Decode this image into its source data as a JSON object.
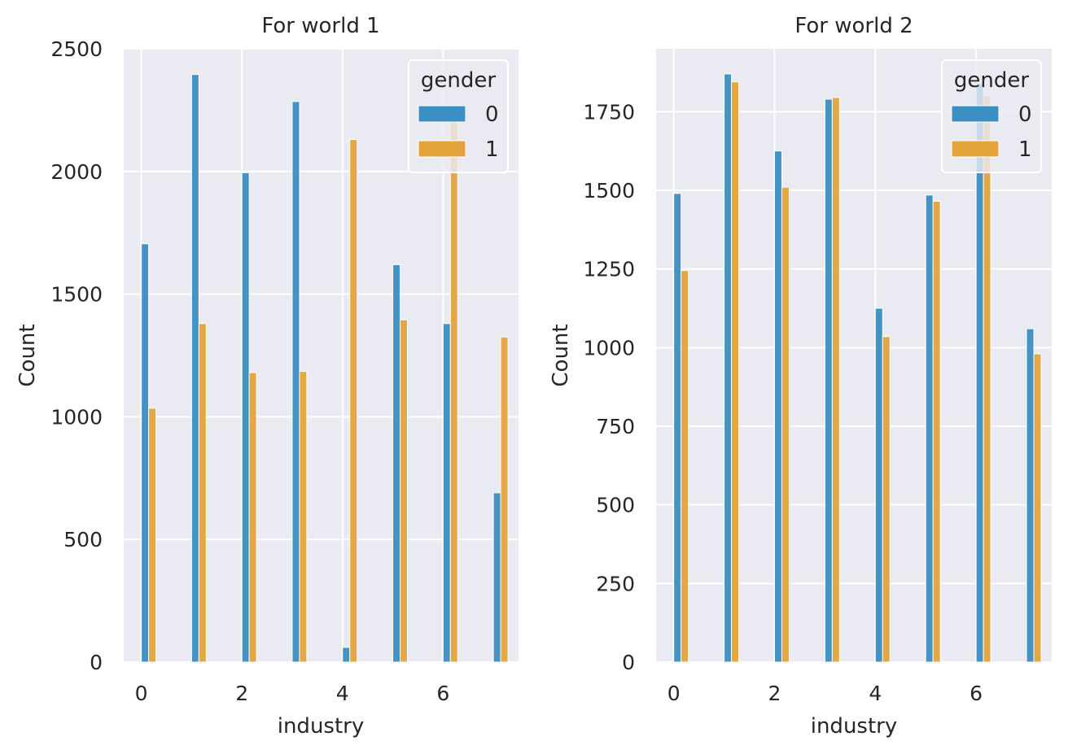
{
  "chart_data": [
    {
      "type": "bar",
      "title": "For world 1",
      "xlabel": "industry",
      "ylabel": "Count",
      "xlim": [
        -0.35,
        7.5
      ],
      "ylim": [
        0,
        2500
      ],
      "xticks": [
        "0",
        "2",
        "4",
        "6"
      ],
      "yticks": [
        "0",
        "500",
        "1000",
        "1500",
        "2000",
        "2500"
      ],
      "grid": true,
      "categories": [
        0,
        1,
        2,
        3,
        4,
        5,
        6,
        7
      ],
      "legend": {
        "title": "gender",
        "placement": "top-right",
        "entries": [
          "0",
          "1"
        ]
      },
      "series": [
        {
          "name": "0",
          "color": "#3c8fc2",
          "values": [
            1705,
            2395,
            1995,
            2285,
            60,
            1620,
            1380,
            690
          ]
        },
        {
          "name": "1",
          "color": "#e4a43c",
          "values": [
            1035,
            1380,
            1180,
            1185,
            2130,
            1395,
            2235,
            1325
          ]
        }
      ]
    },
    {
      "type": "bar",
      "title": "For world 2",
      "xlabel": "industry",
      "ylabel": "Count",
      "xlim": [
        -0.35,
        7.5
      ],
      "ylim": [
        0,
        1950
      ],
      "xticks": [
        "0",
        "2",
        "4",
        "6"
      ],
      "yticks": [
        "0",
        "250",
        "500",
        "750",
        "1000",
        "1250",
        "1500",
        "1750"
      ],
      "grid": true,
      "categories": [
        0,
        1,
        2,
        3,
        4,
        5,
        6,
        7
      ],
      "legend": {
        "title": "gender",
        "placement": "top-right",
        "entries": [
          "0",
          "1"
        ]
      },
      "series": [
        {
          "name": "0",
          "color": "#3c8fc2",
          "values": [
            1490,
            1870,
            1625,
            1790,
            1125,
            1485,
            1840,
            1060
          ]
        },
        {
          "name": "1",
          "color": "#e4a43c",
          "values": [
            1245,
            1845,
            1510,
            1795,
            1035,
            1465,
            1800,
            980
          ]
        }
      ]
    }
  ]
}
